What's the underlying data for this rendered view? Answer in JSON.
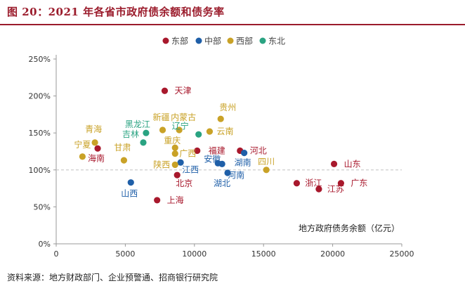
{
  "figure": {
    "title": "图 20：2021 年各省市政府债余额和债务率",
    "source": "资料来源：地方财政部门、企业预警通、招商银行研究院"
  },
  "colors": {
    "东部": "#a8182c",
    "中部": "#1f5fa8",
    "西部": "#c9a227",
    "东北": "#2aa382"
  },
  "chart_data": {
    "type": "scatter",
    "title": "2021 年各省市政府债余额和债务率",
    "xlabel": "地方政府债务余额（亿元）",
    "ylabel": "",
    "xlim": [
      0,
      25000
    ],
    "ylim": [
      0,
      2.5
    ],
    "xticks": [
      0,
      5000,
      10000,
      15000,
      20000,
      25000
    ],
    "xtick_labels": [
      "0",
      "5000",
      "10000",
      "15000",
      "20000",
      "25000"
    ],
    "yticks": [
      0,
      0.5,
      1.0,
      1.5,
      2.0,
      2.5
    ],
    "ytick_labels": [
      "0%",
      "50%",
      "100%",
      "150%",
      "200%",
      "250%"
    ],
    "reference_line_y": 1.0,
    "legend": [
      "东部",
      "中部",
      "西部",
      "东北"
    ],
    "points": [
      {
        "name": "天津",
        "region": "东部",
        "x": 7850,
        "y": 2.07
      },
      {
        "name": "福建",
        "region": "东部",
        "x": 10200,
        "y": 1.26
      },
      {
        "name": "河北",
        "region": "东部",
        "x": 13300,
        "y": 1.26
      },
      {
        "name": "北京",
        "region": "东部",
        "x": 8750,
        "y": 0.93
      },
      {
        "name": "上海",
        "region": "东部",
        "x": 7300,
        "y": 0.59
      },
      {
        "name": "山东",
        "region": "东部",
        "x": 20100,
        "y": 1.08
      },
      {
        "name": "浙江",
        "region": "东部",
        "x": 17400,
        "y": 0.82
      },
      {
        "name": "江苏",
        "region": "东部",
        "x": 19000,
        "y": 0.74
      },
      {
        "name": "广东",
        "region": "东部",
        "x": 20600,
        "y": 0.82
      },
      {
        "name": "海南",
        "region": "东部",
        "x": 3000,
        "y": 1.29
      },
      {
        "name": "安徽",
        "region": "中部",
        "x": 11700,
        "y": 1.09
      },
      {
        "name": "湖北",
        "region": "中部",
        "x": 12400,
        "y": 0.96
      },
      {
        "name": "河南",
        "region": "中部",
        "x": 12000,
        "y": 1.08
      },
      {
        "name": "湖南",
        "region": "中部",
        "x": 13600,
        "y": 1.23
      },
      {
        "name": "江西",
        "region": "中部",
        "x": 9000,
        "y": 1.1
      },
      {
        "name": "山西",
        "region": "中部",
        "x": 5400,
        "y": 0.83
      },
      {
        "name": "贵州",
        "region": "西部",
        "x": 11900,
        "y": 1.69
      },
      {
        "name": "云南",
        "region": "西部",
        "x": 11100,
        "y": 1.52
      },
      {
        "name": "新疆",
        "region": "西部",
        "x": 7700,
        "y": 1.54
      },
      {
        "name": "内蒙古",
        "region": "西部",
        "x": 8900,
        "y": 1.54
      },
      {
        "name": "重庆",
        "region": "西部",
        "x": 8600,
        "y": 1.3
      },
      {
        "name": "广西",
        "region": "西部",
        "x": 8600,
        "y": 1.22
      },
      {
        "name": "陕西",
        "region": "西部",
        "x": 8600,
        "y": 1.07
      },
      {
        "name": "四川",
        "region": "西部",
        "x": 15200,
        "y": 1.0
      },
      {
        "name": "甘肃",
        "region": "西部",
        "x": 4900,
        "y": 1.13
      },
      {
        "name": "青海",
        "region": "西部",
        "x": 2800,
        "y": 1.37
      },
      {
        "name": "宁夏",
        "region": "西部",
        "x": 1900,
        "y": 1.18
      },
      {
        "name": "黑龙江",
        "region": "东北",
        "x": 6500,
        "y": 1.5
      },
      {
        "name": "吉林",
        "region": "东北",
        "x": 6300,
        "y": 1.37
      },
      {
        "name": "辽宁",
        "region": "东北",
        "x": 10300,
        "y": 1.48
      }
    ]
  }
}
